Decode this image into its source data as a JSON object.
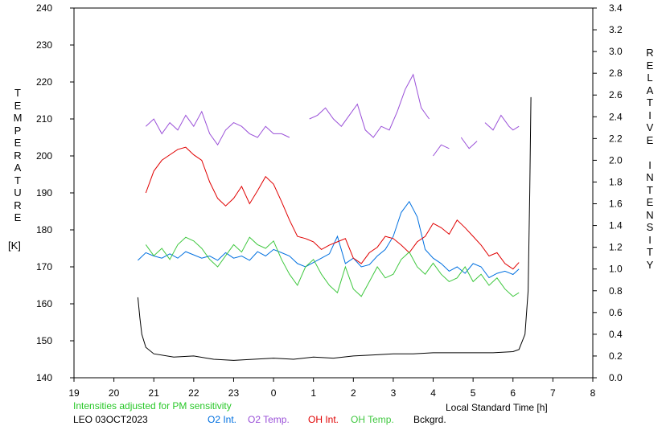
{
  "chart_data": {
    "type": "line",
    "left_axis": {
      "label": "TEMPERATURE",
      "unit": "[K]",
      "range": [
        140,
        240
      ],
      "ticks": [
        140,
        150,
        160,
        170,
        180,
        190,
        200,
        210,
        220,
        230,
        240
      ],
      "tick_labels": [
        "140",
        "150",
        "160",
        "170",
        "180",
        "190",
        "200",
        "210",
        "220",
        "230",
        "240"
      ]
    },
    "right_axis": {
      "label": "RELATIVE INTENSITY",
      "range": [
        0,
        3.4
      ],
      "ticks": [
        0,
        0.2,
        0.4,
        0.6,
        0.8,
        1.0,
        1.2,
        1.4,
        1.6,
        1.8,
        2.0,
        2.2,
        2.4,
        2.6,
        2.8,
        3.0,
        3.2,
        3.4
      ],
      "tick_labels": [
        "0.0",
        "0.2",
        "0.4",
        "0.6",
        "0.8",
        "1.0",
        "1.2",
        "1.4",
        "1.6",
        "1.8",
        "2.0",
        "2.2",
        "2.4",
        "2.6",
        "2.8",
        "3.0",
        "3.2",
        "3.4"
      ]
    },
    "x_axis": {
      "label": "Local Standard Time [h]",
      "range": [
        19,
        32
      ],
      "ticks": [
        19,
        20,
        21,
        22,
        23,
        24,
        25,
        26,
        27,
        28,
        29,
        30,
        31,
        32
      ],
      "tick_labels": [
        "19",
        "20",
        "21",
        "22",
        "23",
        "0",
        "1",
        "2",
        "3",
        "4",
        "5",
        "6",
        "7",
        "8"
      ]
    },
    "grid": false,
    "note": "Intensities adjusted for PM sensitivity",
    "station_date": "LEO 03OCT2023",
    "series": [
      {
        "name": "O2 Int.",
        "axis": "right",
        "color": "#0070e0",
        "x": [
          20.6,
          20.8,
          21.0,
          21.2,
          21.4,
          21.6,
          21.8,
          22.0,
          22.2,
          22.4,
          22.6,
          22.8,
          23.0,
          23.2,
          23.4,
          23.6,
          23.8,
          24.0,
          24.2,
          24.4,
          24.6,
          24.8,
          25.0,
          25.2,
          25.4,
          25.6,
          25.8,
          26.0,
          26.2,
          26.4,
          26.6,
          26.8,
          27.0,
          27.2,
          27.4,
          27.6,
          27.8,
          28.0,
          28.2,
          28.4,
          28.6,
          28.8,
          29.0,
          29.2,
          29.4,
          29.6,
          29.8,
          30.0,
          30.15
        ],
        "y": [
          1.08,
          1.15,
          1.12,
          1.1,
          1.14,
          1.1,
          1.16,
          1.13,
          1.1,
          1.12,
          1.08,
          1.15,
          1.1,
          1.12,
          1.08,
          1.16,
          1.12,
          1.18,
          1.15,
          1.12,
          1.05,
          1.02,
          1.06,
          1.1,
          1.14,
          1.3,
          1.05,
          1.1,
          1.02,
          1.04,
          1.12,
          1.18,
          1.3,
          1.52,
          1.62,
          1.48,
          1.18,
          1.1,
          1.05,
          0.98,
          1.02,
          0.96,
          1.05,
          1.02,
          0.92,
          0.96,
          0.98,
          0.95,
          1.0
        ]
      },
      {
        "name": "O2 Temp.",
        "axis": "left",
        "color": "#9a50d8",
        "x": [
          20.8,
          21.0,
          21.2,
          21.4,
          21.6,
          21.8,
          22.0,
          22.2,
          22.4,
          22.6,
          22.8,
          23.0,
          23.2,
          23.4,
          23.6,
          23.8,
          24.0,
          24.2,
          24.4,
          null,
          24.9,
          25.1,
          25.3,
          25.5,
          25.7,
          25.9,
          26.1,
          26.3,
          26.5,
          26.7,
          26.9,
          27.1,
          27.3,
          27.5,
          27.7,
          27.9,
          null,
          28.0,
          28.2,
          28.4,
          null,
          28.7,
          28.9,
          29.1,
          null,
          29.3,
          29.5,
          29.7,
          29.9,
          30.0,
          30.15
        ],
        "y": [
          208,
          210,
          206,
          209,
          207,
          211,
          208,
          212,
          206,
          203,
          207,
          209,
          208,
          206,
          205,
          208,
          206,
          206,
          205,
          null,
          210,
          211,
          213,
          210,
          208,
          211,
          214,
          207,
          205,
          208,
          207,
          212,
          218,
          222,
          213,
          210,
          null,
          200,
          203,
          202,
          null,
          205,
          202,
          204,
          null,
          209,
          207,
          211,
          208,
          207,
          208
        ]
      },
      {
        "name": "OH Int.",
        "axis": "right",
        "color": "#e00000",
        "x": [
          20.8,
          21.0,
          21.2,
          21.4,
          21.6,
          21.8,
          22.0,
          22.2,
          22.4,
          22.6,
          22.8,
          23.0,
          23.2,
          23.4,
          23.6,
          23.8,
          24.0,
          24.2,
          24.4,
          24.6,
          24.8,
          25.0,
          25.2,
          25.4,
          25.6,
          25.8,
          26.0,
          26.2,
          26.4,
          26.6,
          26.8,
          27.0,
          27.2,
          27.4,
          27.6,
          27.8,
          28.0,
          28.2,
          28.4,
          28.6,
          28.8,
          29.0,
          29.2,
          29.4,
          29.6,
          29.8,
          30.0,
          30.15
        ],
        "y": [
          1.7,
          1.9,
          2.0,
          2.05,
          2.1,
          2.12,
          2.05,
          2.0,
          1.8,
          1.65,
          1.58,
          1.65,
          1.76,
          1.6,
          1.72,
          1.85,
          1.78,
          1.62,
          1.45,
          1.3,
          1.28,
          1.25,
          1.18,
          1.22,
          1.25,
          1.28,
          1.1,
          1.05,
          1.15,
          1.2,
          1.3,
          1.28,
          1.22,
          1.15,
          1.25,
          1.3,
          1.42,
          1.38,
          1.32,
          1.45,
          1.38,
          1.3,
          1.22,
          1.12,
          1.15,
          1.05,
          1.0,
          1.06
        ]
      },
      {
        "name": "OH Temp.",
        "axis": "left",
        "color": "#40c840",
        "x": [
          20.8,
          21.0,
          21.2,
          21.4,
          21.6,
          21.8,
          22.0,
          22.2,
          22.4,
          22.6,
          22.8,
          23.0,
          23.2,
          23.4,
          23.6,
          23.8,
          24.0,
          24.2,
          24.4,
          24.6,
          24.8,
          25.0,
          25.2,
          25.4,
          25.6,
          25.8,
          26.0,
          26.2,
          26.4,
          26.6,
          26.8,
          27.0,
          27.2,
          27.4,
          27.6,
          27.8,
          28.0,
          28.2,
          28.4,
          28.6,
          28.8,
          29.0,
          29.2,
          29.4,
          29.6,
          29.8,
          30.0,
          30.15
        ],
        "y": [
          176,
          173,
          175,
          172,
          176,
          178,
          177,
          175,
          172,
          170,
          173,
          176,
          174,
          178,
          176,
          175,
          177,
          172,
          168,
          165,
          170,
          172,
          168,
          165,
          163,
          170,
          164,
          162,
          166,
          170,
          167,
          168,
          172,
          174,
          170,
          168,
          171,
          168,
          166,
          167,
          170,
          166,
          168,
          165,
          167,
          164,
          162,
          163
        ]
      },
      {
        "name": "Bckgrd.",
        "axis": "right",
        "color": "#000000",
        "x": [
          20.6,
          20.65,
          20.7,
          20.8,
          21.0,
          21.5,
          22.0,
          22.5,
          23.0,
          23.5,
          24.0,
          24.5,
          25.0,
          25.5,
          26.0,
          26.5,
          27.0,
          27.5,
          28.0,
          28.5,
          29.0,
          29.5,
          30.0,
          30.15,
          30.3,
          30.38,
          30.42,
          30.45
        ],
        "y": [
          0.74,
          0.55,
          0.4,
          0.28,
          0.22,
          0.19,
          0.2,
          0.17,
          0.16,
          0.17,
          0.18,
          0.17,
          0.19,
          0.18,
          0.2,
          0.21,
          0.22,
          0.22,
          0.23,
          0.23,
          0.23,
          0.23,
          0.24,
          0.26,
          0.4,
          0.8,
          1.7,
          2.58
        ]
      }
    ]
  }
}
